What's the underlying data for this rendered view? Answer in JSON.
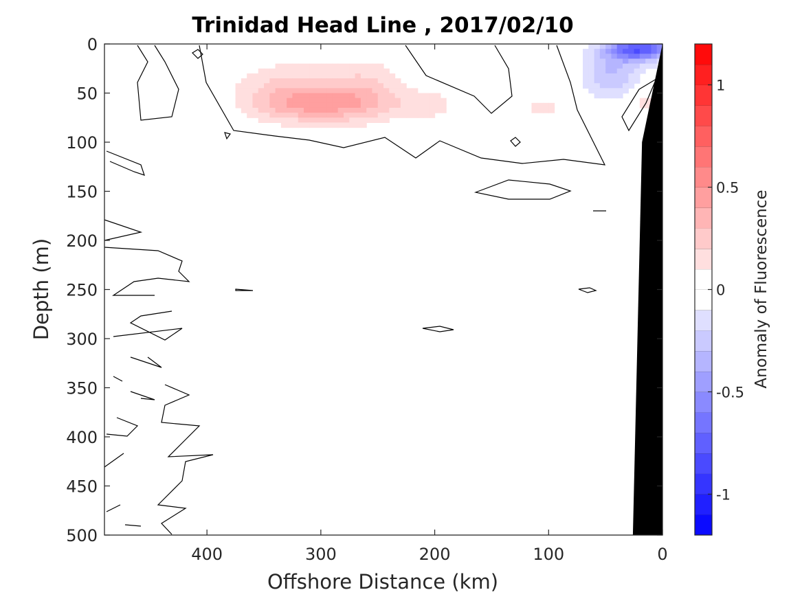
{
  "chart_data": {
    "type": "heatmap",
    "title": "Trinidad Head Line , 2017/02/10",
    "xlabel": "Offshore Distance (km)",
    "ylabel": "Depth (m)",
    "colorbar_label": "Anomaly of Fluorescence",
    "xlim": [
      490,
      0
    ],
    "ylim": [
      500,
      0
    ],
    "x_ticks": [
      400,
      300,
      200,
      100,
      0
    ],
    "y_ticks": [
      0,
      50,
      100,
      150,
      200,
      250,
      300,
      350,
      400,
      450,
      500
    ],
    "color_range": [
      -1.2,
      1.2
    ],
    "color_levels": 24,
    "colorbar_ticks": [
      {
        "value": 1,
        "label": "1"
      },
      {
        "value": 0.5,
        "label": "0.5"
      },
      {
        "value": 0,
        "label": "0"
      },
      {
        "value": -0.5,
        "label": "-0.5"
      },
      {
        "value": -1,
        "label": "-1"
      }
    ],
    "colormap": {
      "negative": "#0000ff",
      "zero": "#ffffff",
      "positive": "#ff0000"
    },
    "bathymetry_color": "#000000",
    "bathymetry": [
      [
        0,
        0
      ],
      [
        18,
        100
      ],
      [
        26,
        500
      ],
      [
        0,
        500
      ]
    ],
    "features": [
      {
        "sign": "positive",
        "peak": 0.35,
        "center": [
          300,
          62
        ],
        "spread": [
          55,
          18
        ]
      },
      {
        "sign": "positive",
        "peak": 0.2,
        "center": [
          330,
          45
        ],
        "spread": [
          45,
          28
        ]
      },
      {
        "sign": "positive",
        "peak": 0.2,
        "center": [
          260,
          45
        ],
        "spread": [
          35,
          30
        ]
      },
      {
        "sign": "positive",
        "peak": 0.15,
        "center": [
          205,
          62
        ],
        "spread": [
          25,
          15
        ]
      },
      {
        "sign": "positive",
        "peak": 0.12,
        "center": [
          105,
          65
        ],
        "spread": [
          22,
          12
        ]
      },
      {
        "sign": "positive",
        "peak": 0.1,
        "center": [
          485,
          60
        ],
        "spread": [
          20,
          35
        ]
      },
      {
        "sign": "positive",
        "peak": 0.15,
        "center": [
          15,
          60
        ],
        "spread": [
          12,
          12
        ]
      },
      {
        "sign": "negative",
        "peak": -0.8,
        "center": [
          20,
          5
        ],
        "spread": [
          28,
          12
        ]
      },
      {
        "sign": "negative",
        "peak": -0.3,
        "center": [
          45,
          30
        ],
        "spread": [
          25,
          25
        ]
      },
      {
        "sign": "negative",
        "peak": -0.1,
        "center": [
          150,
          20
        ],
        "spread": [
          45,
          20
        ]
      },
      {
        "sign": "negative",
        "peak": -0.08,
        "center": [
          435,
          45
        ],
        "spread": [
          15,
          15
        ]
      },
      {
        "sign": "negative",
        "peak": -0.07,
        "center": [
          390,
          12
        ],
        "spread": [
          12,
          10
        ]
      }
    ]
  }
}
